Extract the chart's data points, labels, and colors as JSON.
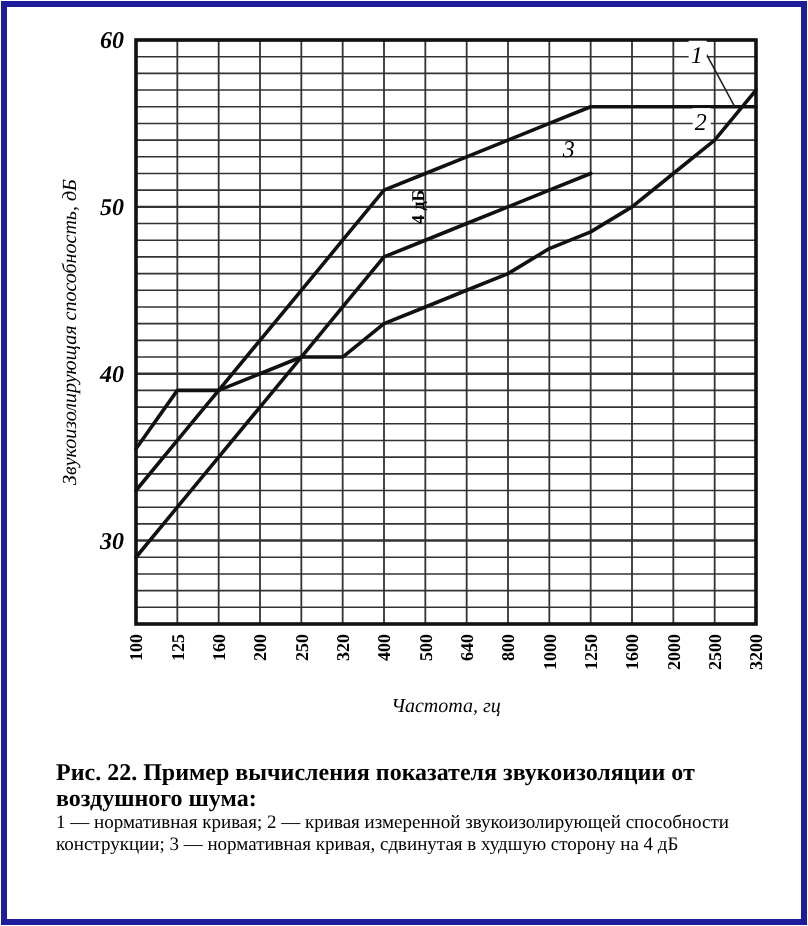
{
  "chart_data": {
    "type": "line",
    "title": "Рис. 22. Пример вычисления показателя звукоизоляции от воздушного шума:",
    "xlabel": "Частота, гц",
    "ylabel": "Звукоизолирующая способность, дБ",
    "categories": [
      "100",
      "125",
      "160",
      "200",
      "250",
      "320",
      "400",
      "500",
      "640",
      "800",
      "1000",
      "1250",
      "1600",
      "2000",
      "2500",
      "3200"
    ],
    "series": [
      {
        "name": "1",
        "color": "#111111",
        "values": [
          33,
          36,
          39,
          42,
          45,
          48,
          51,
          52,
          53,
          54,
          55,
          56,
          56,
          56,
          56,
          56
        ]
      },
      {
        "name": "2",
        "color": "#111111",
        "values": [
          35.5,
          39,
          39,
          40,
          41,
          41,
          43,
          44,
          45,
          46,
          47.5,
          48.5,
          50,
          52,
          54,
          57
        ]
      },
      {
        "name": "3",
        "color": "#111111",
        "values": [
          29,
          32,
          35,
          38,
          41,
          44,
          47,
          48,
          49,
          50,
          51,
          52,
          null,
          null,
          null,
          null
        ]
      }
    ],
    "ylim": [
      25,
      60
    ],
    "yticks": [
      {
        "value": 26,
        "label": null
      },
      {
        "value": 27,
        "label": null
      },
      {
        "value": 28,
        "label": null
      },
      {
        "value": 29,
        "label": null
      },
      30,
      {
        "value": 31,
        "label": null
      },
      {
        "value": 32,
        "label": null
      },
      {
        "value": 33,
        "label": null
      },
      {
        "value": 34,
        "label": null
      },
      {
        "value": 35,
        "label": null
      },
      {
        "value": 36,
        "label": null
      },
      {
        "value": 37,
        "label": null
      },
      {
        "value": 38,
        "label": null
      },
      {
        "value": 39,
        "label": null
      },
      40,
      {
        "value": 41,
        "label": null
      },
      {
        "value": 42,
        "label": null
      },
      {
        "value": 43,
        "label": null
      },
      {
        "value": 44,
        "label": null
      },
      {
        "value": 45,
        "label": null
      },
      {
        "value": 46,
        "label": null
      },
      {
        "value": 47,
        "label": null
      },
      {
        "value": 48,
        "label": null
      },
      {
        "value": 49,
        "label": null
      },
      50,
      {
        "value": 51,
        "label": null
      },
      {
        "value": 52,
        "label": null
      },
      {
        "value": 53,
        "label": null
      },
      {
        "value": 54,
        "label": null
      },
      {
        "value": 55,
        "label": null
      },
      {
        "value": 56,
        "label": null
      },
      {
        "value": 57,
        "label": null
      },
      {
        "value": 58,
        "label": null
      },
      {
        "value": 59,
        "label": null
      },
      60
    ],
    "grid": true,
    "line_style": "solid",
    "marker": "none",
    "annotations": [
      "4 дБ",
      "1 — нормативная кривая; 2 — кривая измеренной звукоизолирующей способности конструкции; 3 — нормативная кривая, сдвинутая в худшую сторону на 4 дБ"
    ]
  }
}
